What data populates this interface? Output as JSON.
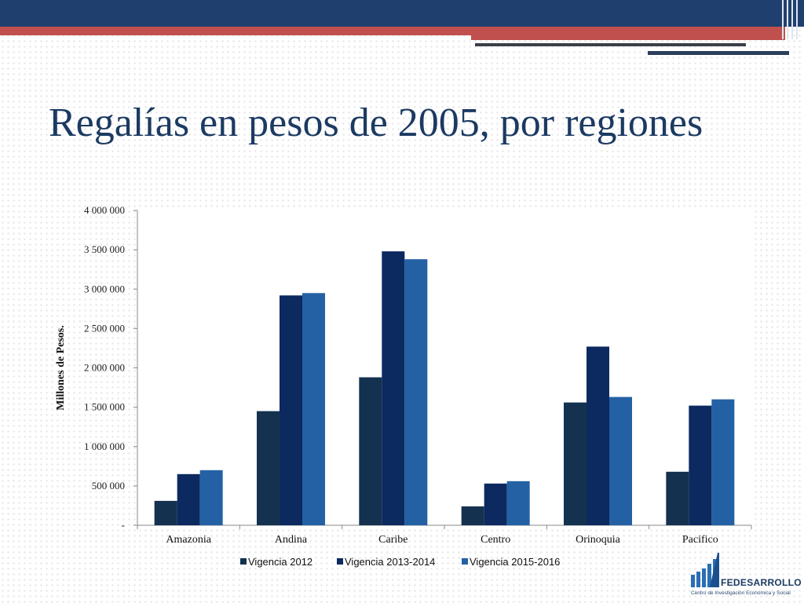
{
  "slide": {
    "title": "Regalías en pesos de 2005, por regiones"
  },
  "logo": {
    "name": "FEDESARROLLO",
    "subtitle": "Centro de Investigación Económica y Social"
  },
  "colors": {
    "top_band": "#1f3f6e",
    "accent_red": "#c0504d",
    "title": "#1c3a62"
  },
  "chart_data": {
    "type": "bar",
    "title": "",
    "xlabel": "",
    "ylabel": "Millones de Pesos.",
    "ylim": [
      0,
      4000000
    ],
    "yticks": [
      0,
      500000,
      1000000,
      1500000,
      2000000,
      2500000,
      3000000,
      3500000,
      4000000
    ],
    "ytick_labels": [
      "-",
      "500 000",
      "1 000 000",
      "1 500 000",
      "2 000 000",
      "2 500 000",
      "3 000 000",
      "3 500 000",
      "4 000 000"
    ],
    "categories": [
      "Amazonia",
      "Andina",
      "Caribe",
      "Centro",
      "Orinoquia",
      "Pacifico"
    ],
    "series": [
      {
        "name": "Vigencia 2012",
        "color": "#14324f",
        "values": [
          310000,
          1450000,
          1880000,
          240000,
          1560000,
          680000
        ]
      },
      {
        "name": "Vigencia 2013-2014",
        "color": "#0c2960",
        "values": [
          650000,
          2920000,
          3480000,
          530000,
          2270000,
          1520000
        ]
      },
      {
        "name": "Vigencia 2015-2016",
        "color": "#2361a4",
        "values": [
          700000,
          2950000,
          3380000,
          560000,
          1630000,
          1600000
        ]
      }
    ],
    "grid": false,
    "legend": "bottom"
  }
}
